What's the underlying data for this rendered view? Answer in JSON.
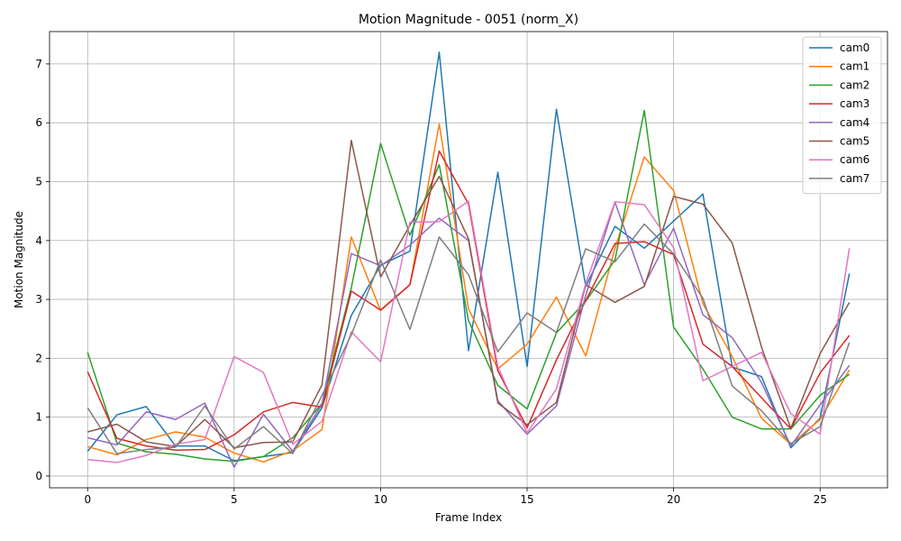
{
  "chart_data": {
    "type": "line",
    "title": "Motion Magnitude - 0051 (norm_X)",
    "xlabel": "Frame Index",
    "ylabel": "Motion Magnitude",
    "xlim": [
      -1.3,
      27.3
    ],
    "ylim": [
      -0.2,
      7.55
    ],
    "xticks": [
      0,
      5,
      10,
      15,
      20,
      25
    ],
    "yticks": [
      0,
      1,
      2,
      3,
      4,
      5,
      6,
      7
    ],
    "grid": true,
    "legend_position": "top-right",
    "x": [
      0,
      1,
      2,
      3,
      4,
      5,
      6,
      7,
      8,
      9,
      10,
      11,
      12,
      13,
      14,
      15,
      16,
      17,
      18,
      19,
      20,
      21,
      22,
      23,
      24,
      25,
      26
    ],
    "series": [
      {
        "name": "cam0",
        "color": "#1f77b4",
        "values": [
          0.42,
          1.04,
          1.18,
          0.51,
          0.51,
          0.26,
          0.33,
          0.4,
          1.16,
          2.73,
          3.58,
          3.82,
          7.2,
          2.13,
          5.16,
          1.86,
          6.23,
          3.22,
          4.24,
          3.87,
          4.33,
          4.79,
          1.85,
          1.69,
          0.48,
          0.98,
          3.44
        ]
      },
      {
        "name": "cam1",
        "color": "#ff7f0e",
        "values": [
          0.5,
          0.36,
          0.62,
          0.75,
          0.66,
          0.39,
          0.24,
          0.43,
          0.79,
          4.06,
          2.81,
          3.25,
          5.98,
          2.84,
          1.82,
          2.24,
          3.04,
          2.04,
          3.87,
          5.42,
          4.85,
          2.93,
          2.03,
          0.98,
          0.54,
          0.96,
          1.8
        ]
      },
      {
        "name": "cam2",
        "color": "#2ca02c",
        "values": [
          2.1,
          0.56,
          0.41,
          0.37,
          0.29,
          0.25,
          0.33,
          0.65,
          1.23,
          3.2,
          5.65,
          4.09,
          5.29,
          2.64,
          1.54,
          1.14,
          2.43,
          2.97,
          3.67,
          6.21,
          2.53,
          1.82,
          1.0,
          0.8,
          0.8,
          1.37,
          1.73
        ]
      },
      {
        "name": "cam3",
        "color": "#d62728",
        "values": [
          1.77,
          0.64,
          0.51,
          0.44,
          0.45,
          0.7,
          1.09,
          1.25,
          1.17,
          3.14,
          2.82,
          3.25,
          5.52,
          4.62,
          1.79,
          0.82,
          1.97,
          2.98,
          3.95,
          3.98,
          3.76,
          2.24,
          1.86,
          1.33,
          0.8,
          1.75,
          2.39
        ]
      },
      {
        "name": "cam4",
        "color": "#9467bd",
        "values": [
          0.65,
          0.53,
          1.09,
          0.96,
          1.24,
          0.15,
          1.05,
          0.42,
          1.22,
          3.78,
          3.57,
          3.92,
          4.38,
          4.0,
          1.28,
          0.71,
          1.19,
          3.07,
          4.65,
          3.25,
          4.21,
          2.74,
          2.35,
          1.59,
          0.51,
          1.21,
          1.88
        ]
      },
      {
        "name": "cam5",
        "color": "#8c564b",
        "values": [
          0.75,
          0.88,
          0.58,
          0.5,
          0.96,
          0.48,
          0.57,
          0.58,
          1.55,
          5.7,
          3.38,
          4.26,
          5.09,
          4.03,
          1.24,
          0.87,
          1.25,
          3.25,
          2.95,
          3.22,
          4.75,
          4.62,
          3.96,
          2.19,
          0.81,
          2.08,
          2.95
        ]
      },
      {
        "name": "cam6",
        "color": "#e377c2",
        "values": [
          0.28,
          0.23,
          0.35,
          0.54,
          0.62,
          2.03,
          1.76,
          0.54,
          0.93,
          2.45,
          1.94,
          4.31,
          4.32,
          4.67,
          1.86,
          0.73,
          1.48,
          3.27,
          4.66,
          4.61,
          3.88,
          1.62,
          1.86,
          2.1,
          1.06,
          0.71,
          3.87
        ]
      },
      {
        "name": "cam7",
        "color": "#7f7f7f",
        "values": [
          1.16,
          0.38,
          0.45,
          0.49,
          1.19,
          0.46,
          0.84,
          0.38,
          1.37,
          2.4,
          3.67,
          2.49,
          4.06,
          3.42,
          2.11,
          2.77,
          2.44,
          3.86,
          3.64,
          4.28,
          3.77,
          3.02,
          1.53,
          1.11,
          0.55,
          0.84,
          2.27
        ]
      }
    ]
  }
}
